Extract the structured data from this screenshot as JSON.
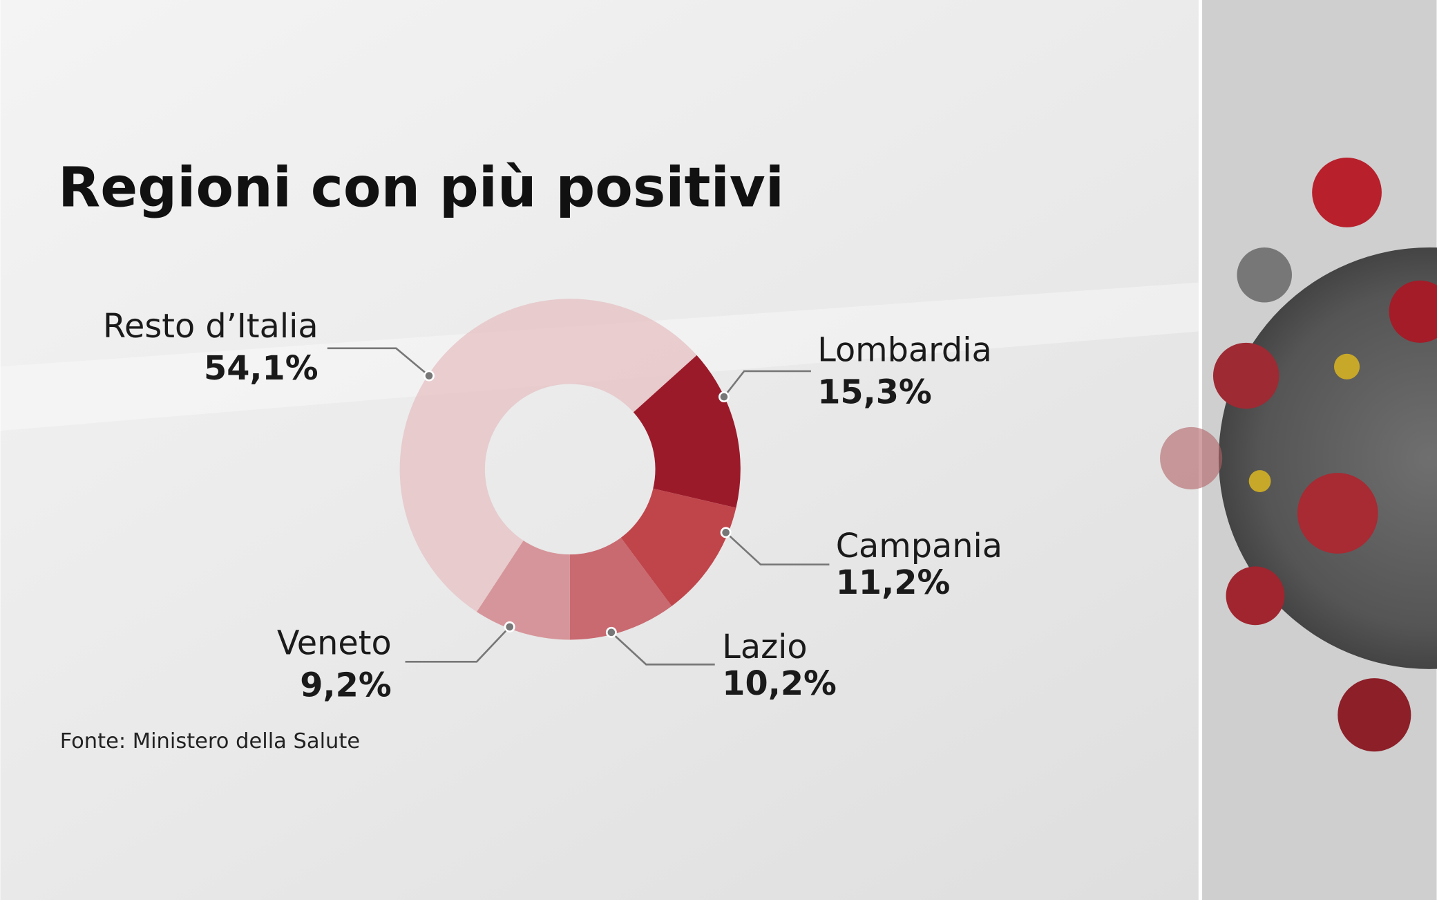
{
  "chart_data": {
    "type": "pie",
    "donut": true,
    "title": "Regioni con più positivi",
    "categories": [
      "Lombardia",
      "Campania",
      "Lazio",
      "Veneto",
      "Resto d’Italia"
    ],
    "values": [
      15.3,
      11.2,
      10.2,
      9.2,
      54.1
    ],
    "value_labels": [
      "15,3%",
      "11,2%",
      "10,2%",
      "9,2%",
      "54,1%"
    ],
    "colors": [
      "#9b1a2a",
      "#bf454b",
      "#c96970",
      "#d6959a",
      "#e6c3c5"
    ],
    "source": "Fonte: Ministero della Salute"
  }
}
